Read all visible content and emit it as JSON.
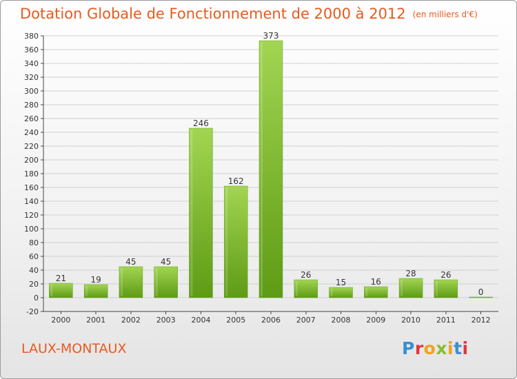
{
  "title": "Dotation Globale de Fonctionnement de 2000 à 2012",
  "unit": "(en milliers d'€)",
  "commune": "LAUX-MONTAUX",
  "logo": {
    "p": "P",
    "r": "r",
    "o": "o",
    "x": "x",
    "i1": "i",
    "t": "t",
    "i2": "i"
  },
  "colors": {
    "bar_light": "#9fd24e",
    "bar_dark": "#5d9a14",
    "title": "#e8591f",
    "grid": "#cccccc"
  },
  "chart_data": {
    "type": "bar",
    "title": "Dotation Globale de Fonctionnement de 2000 à 2012",
    "ylabel": "en milliers d'€",
    "xlabel": "",
    "categories": [
      "2000",
      "2001",
      "2002",
      "2003",
      "2004",
      "2005",
      "2006",
      "2007",
      "2008",
      "2009",
      "2010",
      "2011",
      "2012"
    ],
    "values": [
      21,
      19,
      45,
      45,
      246,
      162,
      373,
      26,
      15,
      16,
      28,
      26,
      0
    ],
    "ylim": [
      -20,
      380
    ],
    "yticks": [
      -20,
      0,
      20,
      40,
      60,
      80,
      100,
      120,
      140,
      160,
      180,
      200,
      220,
      240,
      260,
      280,
      300,
      320,
      340,
      360,
      380
    ],
    "grid": true
  }
}
